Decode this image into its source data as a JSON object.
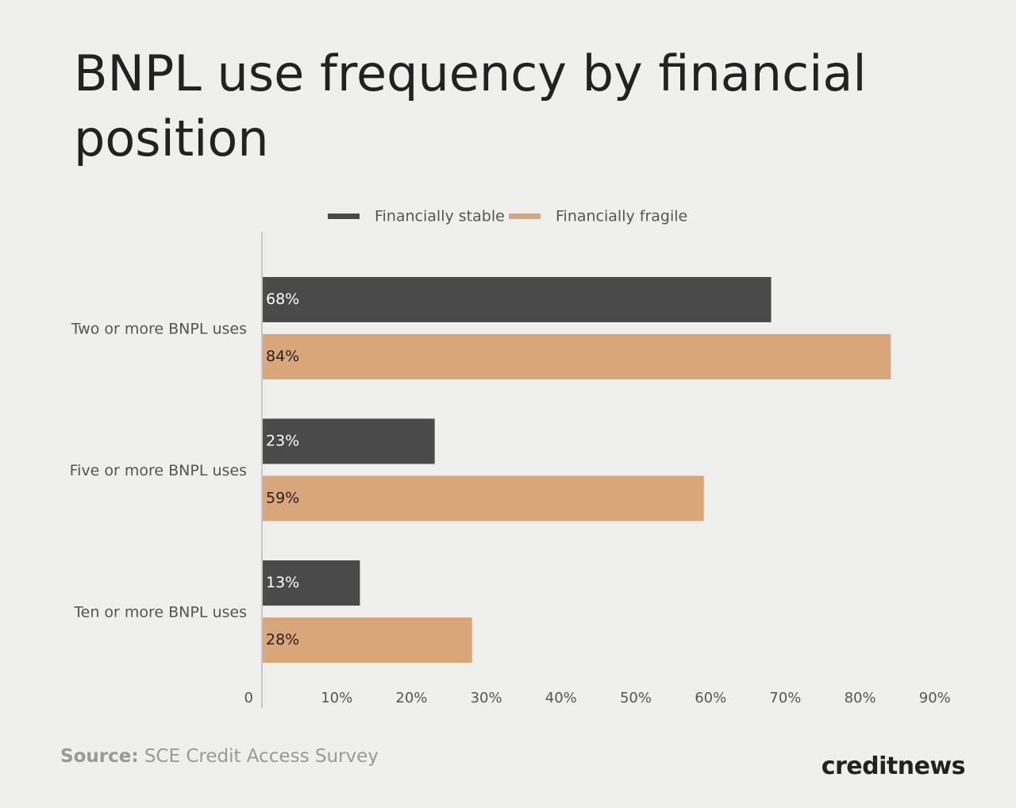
{
  "chart_data": {
    "type": "bar",
    "orientation": "horizontal",
    "title": "BNPL use frequency by financial position",
    "categories": [
      "Two or more BNPL uses",
      "Five or more BNPL uses",
      "Ten or more BNPL uses"
    ],
    "series": [
      {
        "name": "Financially stable",
        "color": "#4a4a4a",
        "values": [
          68,
          23,
          13
        ],
        "value_labels": [
          "68%",
          "23%",
          "13%"
        ]
      },
      {
        "name": "Financially fragile",
        "color": "#d9a679",
        "values": [
          84,
          59,
          28
        ],
        "value_labels": [
          "84%",
          "59%",
          "28%"
        ]
      }
    ],
    "xlim": [
      0,
      90
    ],
    "xticks": [
      0,
      {
        "value": 10,
        "label": "10%"
      },
      {
        "value": 20,
        "label": "20%"
      },
      {
        "value": 30,
        "label": "30%"
      },
      {
        "value": 40,
        "label": "40%"
      },
      {
        "value": 50,
        "label": "50%"
      },
      {
        "value": 60,
        "label": "60%"
      },
      {
        "value": 70,
        "label": "70%"
      },
      {
        "value": 80,
        "label": "80%"
      },
      {
        "value": 90,
        "label": "90%"
      }
    ],
    "legend": "top",
    "source_label": "Source:",
    "source_text": "SCE Credit Access Survey",
    "brand": "creditnews"
  }
}
